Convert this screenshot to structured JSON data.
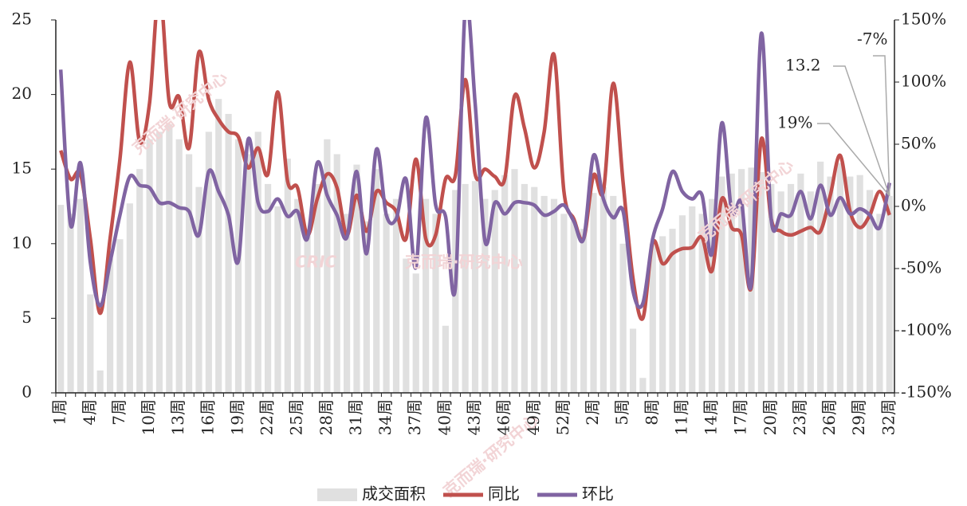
{
  "chart_data": {
    "type": "bar-line",
    "watermark": "CRIC",
    "watermark_text": "克而瑞·研究中心",
    "categories": [
      "1周",
      null,
      null,
      "4周",
      null,
      null,
      "7周",
      null,
      null,
      "10周",
      null,
      null,
      "13周",
      null,
      null,
      "16周",
      null,
      null,
      "19周",
      null,
      null,
      "22周",
      null,
      null,
      "25周",
      null,
      null,
      "28周",
      null,
      null,
      "31周",
      null,
      null,
      "34周",
      null,
      null,
      "37周",
      null,
      null,
      "40周",
      null,
      null,
      "43周",
      null,
      null,
      "46周",
      null,
      null,
      "49周",
      null,
      null,
      "52周",
      null,
      null,
      "2周",
      null,
      null,
      "5周",
      null,
      null,
      "8周",
      null,
      null,
      "11周",
      null,
      null,
      "14周",
      null,
      null,
      "17周",
      null,
      null,
      "20周",
      null,
      null,
      "23周",
      null,
      null,
      "26周",
      null,
      null,
      "29周",
      null,
      null,
      "32周"
    ],
    "series": [
      {
        "name": "成交面积",
        "kind": "bar",
        "color": "#e0e0e0",
        "axis": "y",
        "values": [
          12.6,
          12.0,
          13,
          6.6,
          1.5,
          9,
          10.3,
          12.7,
          15,
          17,
          17.5,
          18,
          17,
          16,
          13.8,
          17.5,
          19.7,
          18.7,
          17,
          16,
          17.5,
          14,
          12.5,
          15.7,
          13,
          11,
          14,
          17,
          16,
          12,
          15.3,
          11.5,
          15,
          12,
          13,
          9,
          8,
          13,
          12,
          4.5,
          13.6,
          14,
          14.2,
          13,
          13.6,
          14.6,
          15,
          14,
          13.8,
          13.2,
          13,
          12,
          11.5,
          11,
          13.4,
          13.8,
          13.2,
          10,
          4.3,
          1,
          10,
          10.5,
          11,
          11.9,
          12.5,
          12,
          13,
          14.5,
          14.7,
          15,
          15.1,
          14.8,
          14,
          13.5,
          14,
          14.7,
          13.5,
          15.5,
          14.5,
          15.4,
          14.5,
          14.6,
          13.6,
          12,
          13.2
        ]
      },
      {
        "name": "同比",
        "kind": "line",
        "color": "#c0504d",
        "axis": "y2",
        "values": [
          45,
          22,
          26,
          -26,
          -86,
          -26,
          38,
          116,
          52,
          83,
          175,
          84,
          88,
          47,
          124,
          86,
          70,
          60,
          56,
          31,
          47,
          26,
          92,
          20,
          15,
          -23,
          6,
          26,
          15,
          -23,
          9,
          -20,
          12,
          3,
          -4,
          -26,
          38,
          -26,
          -23,
          22,
          25,
          102,
          26,
          30,
          24,
          22,
          89,
          63,
          31,
          60,
          122,
          12,
          -10,
          -26,
          25,
          12,
          99,
          19,
          -58,
          -90,
          -29,
          -46,
          -38,
          -34,
          -33,
          -25,
          -52,
          6,
          -17,
          -23,
          -65,
          54,
          -10,
          -20,
          -23,
          -20,
          -17,
          -20,
          9,
          41,
          -4,
          -17,
          -7,
          12,
          -7
        ]
      },
      {
        "name": "环比",
        "kind": "line",
        "color": "#8064a2",
        "axis": "y2",
        "values": [
          110,
          -15,
          35,
          -45,
          -80,
          -45,
          -7,
          24,
          17,
          15,
          3,
          3,
          -1,
          -4,
          -23,
          28,
          12,
          -7,
          -44,
          54,
          3,
          -4,
          6,
          -8,
          -4,
          -26,
          35,
          9,
          -7,
          -25,
          28,
          -38,
          46,
          -7,
          -10,
          22,
          -49,
          71,
          1,
          -8,
          -65,
          160,
          83,
          -28,
          3,
          -6,
          3,
          3,
          1,
          -7,
          -4,
          1,
          -12,
          -26,
          41,
          6,
          -9,
          -4,
          -68,
          -78,
          -26,
          -2,
          28,
          12,
          6,
          9,
          -38,
          67,
          -4,
          3,
          -62,
          139,
          -10,
          -6,
          -7,
          12,
          -10,
          17,
          -7,
          7,
          -6,
          -2,
          -7,
          -17,
          19
        ]
      }
    ],
    "ylim": [
      0,
      25
    ],
    "yticks": [
      0,
      5,
      10,
      15,
      20,
      25
    ],
    "y2lim": [
      -150,
      150
    ],
    "y2ticks": [
      {
        "value": -150,
        "label": "-150%"
      },
      {
        "value": -100,
        "label": "-100%"
      },
      {
        "value": -50,
        "label": "-50%"
      },
      {
        "value": 0,
        "label": "0%"
      },
      {
        "value": 50,
        "label": "50%"
      },
      {
        "value": 100,
        "label": "100%"
      },
      {
        "value": 150,
        "label": "150%"
      }
    ],
    "annotations": [
      {
        "text": "13.2"
      },
      {
        "text": "-7%"
      },
      {
        "text": "19%"
      }
    ],
    "legend": "bottom"
  }
}
